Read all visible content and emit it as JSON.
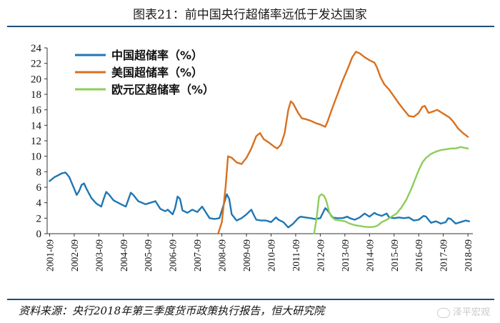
{
  "title": "图表21：前中国央行超储率远低于发达国家",
  "source": "资料来源：央行2018年第三季度货币政策执行报告，恒大研究院",
  "watermark": "泽平宏观",
  "chart_data": {
    "type": "line",
    "x_domain": [
      2001.6,
      2018.9
    ],
    "ylim": [
      0,
      24
    ],
    "yticks": [
      0,
      2,
      4,
      6,
      8,
      10,
      12,
      14,
      16,
      18,
      20,
      22,
      24
    ],
    "categories": [
      "2001-09",
      "2002-09",
      "2003-09",
      "2004-09",
      "2005-09",
      "2006-09",
      "2007-09",
      "2008-09",
      "2009-09",
      "2010-09",
      "2011-09",
      "2012-09",
      "2013-09",
      "2014-09",
      "2015-09",
      "2016-09",
      "2017-09",
      "2018-09"
    ],
    "legend_position": "top-left",
    "series": [
      {
        "name": "中国超储率（%）",
        "color": "#1f77b4",
        "points": [
          [
            2001.7,
            6.8
          ],
          [
            2001.9,
            7.3
          ],
          [
            2002.2,
            7.8
          ],
          [
            2002.35,
            7.9
          ],
          [
            2002.5,
            7.3
          ],
          [
            2002.7,
            5.8
          ],
          [
            2002.8,
            5.0
          ],
          [
            2002.9,
            5.5
          ],
          [
            2003.0,
            6.3
          ],
          [
            2003.1,
            6.5
          ],
          [
            2003.2,
            5.8
          ],
          [
            2003.4,
            4.6
          ],
          [
            2003.6,
            3.9
          ],
          [
            2003.8,
            3.5
          ],
          [
            2003.9,
            4.5
          ],
          [
            2004.0,
            5.4
          ],
          [
            2004.1,
            5.1
          ],
          [
            2004.3,
            4.3
          ],
          [
            2004.6,
            3.8
          ],
          [
            2004.8,
            3.5
          ],
          [
            2004.9,
            4.4
          ],
          [
            2005.0,
            5.3
          ],
          [
            2005.1,
            5.0
          ],
          [
            2005.3,
            4.2
          ],
          [
            2005.6,
            3.8
          ],
          [
            2005.8,
            4.0
          ],
          [
            2006.0,
            4.2
          ],
          [
            2006.2,
            3.2
          ],
          [
            2006.4,
            2.9
          ],
          [
            2006.5,
            3.1
          ],
          [
            2006.7,
            2.5
          ],
          [
            2006.8,
            3.3
          ],
          [
            2006.9,
            4.8
          ],
          [
            2007.0,
            4.5
          ],
          [
            2007.1,
            3.0
          ],
          [
            2007.3,
            2.7
          ],
          [
            2007.5,
            3.1
          ],
          [
            2007.7,
            2.8
          ],
          [
            2007.9,
            3.5
          ],
          [
            2008.0,
            3.0
          ],
          [
            2008.2,
            2.0
          ],
          [
            2008.4,
            1.9
          ],
          [
            2008.6,
            2.0
          ],
          [
            2008.8,
            4.0
          ],
          [
            2008.9,
            5.1
          ],
          [
            2009.0,
            4.5
          ],
          [
            2009.1,
            2.5
          ],
          [
            2009.3,
            1.7
          ],
          [
            2009.5,
            2.0
          ],
          [
            2009.7,
            2.5
          ],
          [
            2009.9,
            3.1
          ],
          [
            2010.0,
            2.4
          ],
          [
            2010.1,
            1.8
          ],
          [
            2010.3,
            1.7
          ],
          [
            2010.5,
            1.7
          ],
          [
            2010.7,
            1.5
          ],
          [
            2010.9,
            2.1
          ],
          [
            2011.0,
            1.8
          ],
          [
            2011.2,
            1.5
          ],
          [
            2011.4,
            0.8
          ],
          [
            2011.6,
            1.3
          ],
          [
            2011.8,
            2.0
          ],
          [
            2011.9,
            2.2
          ],
          [
            2012.1,
            2.1
          ],
          [
            2012.3,
            2.0
          ],
          [
            2012.5,
            1.9
          ],
          [
            2012.7,
            2.0
          ],
          [
            2012.9,
            3.3
          ],
          [
            2013.0,
            3.0
          ],
          [
            2013.2,
            2.1
          ],
          [
            2013.4,
            2.0
          ],
          [
            2013.6,
            2.0
          ],
          [
            2013.8,
            2.2
          ],
          [
            2013.9,
            2.0
          ],
          [
            2014.1,
            1.8
          ],
          [
            2014.3,
            2.1
          ],
          [
            2014.5,
            2.6
          ],
          [
            2014.7,
            2.2
          ],
          [
            2014.9,
            2.7
          ],
          [
            2015.0,
            2.5
          ],
          [
            2015.2,
            2.3
          ],
          [
            2015.4,
            2.6
          ],
          [
            2015.5,
            2.1
          ],
          [
            2015.7,
            2.0
          ],
          [
            2015.9,
            2.1
          ],
          [
            2016.1,
            2.0
          ],
          [
            2016.3,
            2.1
          ],
          [
            2016.5,
            1.7
          ],
          [
            2016.7,
            1.8
          ],
          [
            2016.9,
            2.3
          ],
          [
            2017.0,
            2.2
          ],
          [
            2017.2,
            1.4
          ],
          [
            2017.4,
            1.6
          ],
          [
            2017.6,
            1.3
          ],
          [
            2017.8,
            1.5
          ],
          [
            2017.9,
            2.0
          ],
          [
            2018.0,
            1.9
          ],
          [
            2018.2,
            1.3
          ],
          [
            2018.4,
            1.5
          ],
          [
            2018.6,
            1.7
          ],
          [
            2018.75,
            1.6
          ]
        ]
      },
      {
        "name": "美国超储率（%）",
        "color": "#d9701e",
        "points": [
          [
            2008.55,
            0.0
          ],
          [
            2008.7,
            1.5
          ],
          [
            2008.85,
            6.0
          ],
          [
            2008.95,
            10.0
          ],
          [
            2009.1,
            9.8
          ],
          [
            2009.3,
            9.2
          ],
          [
            2009.5,
            9.0
          ],
          [
            2009.7,
            9.8
          ],
          [
            2009.9,
            11.0
          ],
          [
            2010.1,
            12.6
          ],
          [
            2010.25,
            13.0
          ],
          [
            2010.4,
            12.2
          ],
          [
            2010.6,
            11.8
          ],
          [
            2010.8,
            11.3
          ],
          [
            2010.95,
            11.0
          ],
          [
            2011.1,
            11.5
          ],
          [
            2011.25,
            13.0
          ],
          [
            2011.4,
            16.0
          ],
          [
            2011.5,
            17.1
          ],
          [
            2011.6,
            16.8
          ],
          [
            2011.8,
            15.6
          ],
          [
            2011.95,
            14.9
          ],
          [
            2012.1,
            14.8
          ],
          [
            2012.3,
            14.6
          ],
          [
            2012.5,
            14.3
          ],
          [
            2012.7,
            14.1
          ],
          [
            2012.9,
            13.8
          ],
          [
            2013.0,
            14.5
          ],
          [
            2013.2,
            16.3
          ],
          [
            2013.4,
            18.0
          ],
          [
            2013.6,
            19.7
          ],
          [
            2013.8,
            21.2
          ],
          [
            2014.0,
            22.8
          ],
          [
            2014.15,
            23.5
          ],
          [
            2014.3,
            23.3
          ],
          [
            2014.5,
            22.8
          ],
          [
            2014.7,
            22.4
          ],
          [
            2014.9,
            22.1
          ],
          [
            2015.0,
            21.5
          ],
          [
            2015.15,
            20.2
          ],
          [
            2015.3,
            19.3
          ],
          [
            2015.5,
            18.6
          ],
          [
            2015.7,
            17.7
          ],
          [
            2015.9,
            16.8
          ],
          [
            2016.1,
            16.0
          ],
          [
            2016.3,
            15.2
          ],
          [
            2016.5,
            15.1
          ],
          [
            2016.7,
            15.6
          ],
          [
            2016.85,
            16.4
          ],
          [
            2016.95,
            16.5
          ],
          [
            2017.1,
            15.6
          ],
          [
            2017.3,
            15.8
          ],
          [
            2017.45,
            16.0
          ],
          [
            2017.6,
            15.7
          ],
          [
            2017.8,
            15.3
          ],
          [
            2017.95,
            15.0
          ],
          [
            2018.1,
            14.5
          ],
          [
            2018.3,
            13.6
          ],
          [
            2018.5,
            13.0
          ],
          [
            2018.7,
            12.5
          ]
        ]
      },
      {
        "name": "欧元区超储率（%）",
        "color": "#8cce5a",
        "points": [
          [
            2012.45,
            0.0
          ],
          [
            2012.55,
            2.0
          ],
          [
            2012.65,
            4.8
          ],
          [
            2012.75,
            5.1
          ],
          [
            2012.85,
            4.9
          ],
          [
            2012.95,
            4.2
          ],
          [
            2013.05,
            2.9
          ],
          [
            2013.15,
            2.2
          ],
          [
            2013.3,
            1.8
          ],
          [
            2013.5,
            1.7
          ],
          [
            2013.7,
            1.6
          ],
          [
            2013.9,
            1.3
          ],
          [
            2014.1,
            1.1
          ],
          [
            2014.3,
            1.0
          ],
          [
            2014.5,
            0.9
          ],
          [
            2014.7,
            0.85
          ],
          [
            2014.9,
            0.9
          ],
          [
            2015.05,
            1.1
          ],
          [
            2015.2,
            1.5
          ],
          [
            2015.4,
            1.8
          ],
          [
            2015.6,
            2.2
          ],
          [
            2015.8,
            2.6
          ],
          [
            2016.0,
            3.4
          ],
          [
            2016.2,
            4.4
          ],
          [
            2016.4,
            5.8
          ],
          [
            2016.55,
            7.0
          ],
          [
            2016.7,
            8.2
          ],
          [
            2016.85,
            9.2
          ],
          [
            2017.0,
            9.8
          ],
          [
            2017.2,
            10.3
          ],
          [
            2017.4,
            10.6
          ],
          [
            2017.6,
            10.8
          ],
          [
            2017.8,
            10.9
          ],
          [
            2018.0,
            11.0
          ],
          [
            2018.2,
            11.0
          ],
          [
            2018.4,
            11.2
          ],
          [
            2018.55,
            11.1
          ],
          [
            2018.7,
            11.0
          ]
        ]
      }
    ]
  }
}
